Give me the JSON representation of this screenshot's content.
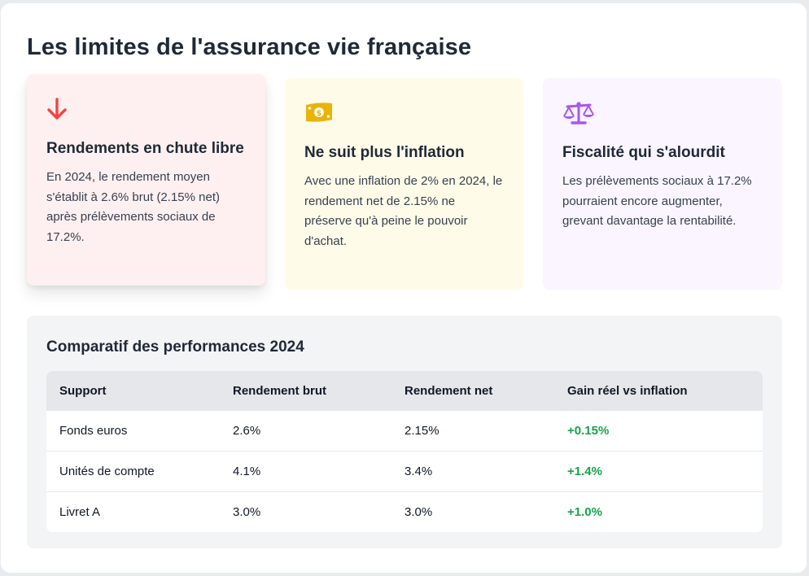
{
  "title": "Les limites de l'assurance vie française",
  "colors": {
    "red_accent": "#ef4444",
    "yellow_accent": "#eab308",
    "purple_accent": "#a855f7",
    "gain_green": "#16a34a"
  },
  "cards": [
    {
      "icon": "arrow-down-icon",
      "title": "Rendements en chute libre",
      "text": "En 2024, le rendement moyen s'établit à 2.6% brut (2.15% net) après prélèvements sociaux de 17.2%."
    },
    {
      "icon": "money-bill-icon",
      "title": "Ne suit plus l'inflation",
      "text": "Avec une inflation de 2% en 2024, le rendement net de 2.15% ne préserve qu'à peine le pouvoir d'achat."
    },
    {
      "icon": "balance-scale-icon",
      "title": "Fiscalité qui s'alourdit",
      "text": "Les prélèvements sociaux à 17.2% pourraient encore augmenter, grevant davantage la rentabilité."
    }
  ],
  "comparatif": {
    "title": "Comparatif des performances 2024",
    "headers": [
      "Support",
      "Rendement brut",
      "Rendement net",
      "Gain réel vs inflation"
    ],
    "rows": [
      [
        "Fonds euros",
        "2.6%",
        "2.15%",
        "+0.15%"
      ],
      [
        "Unités de compte",
        "4.1%",
        "3.4%",
        "+1.4%"
      ],
      [
        "Livret A",
        "3.0%",
        "3.0%",
        "+1.0%"
      ]
    ]
  }
}
